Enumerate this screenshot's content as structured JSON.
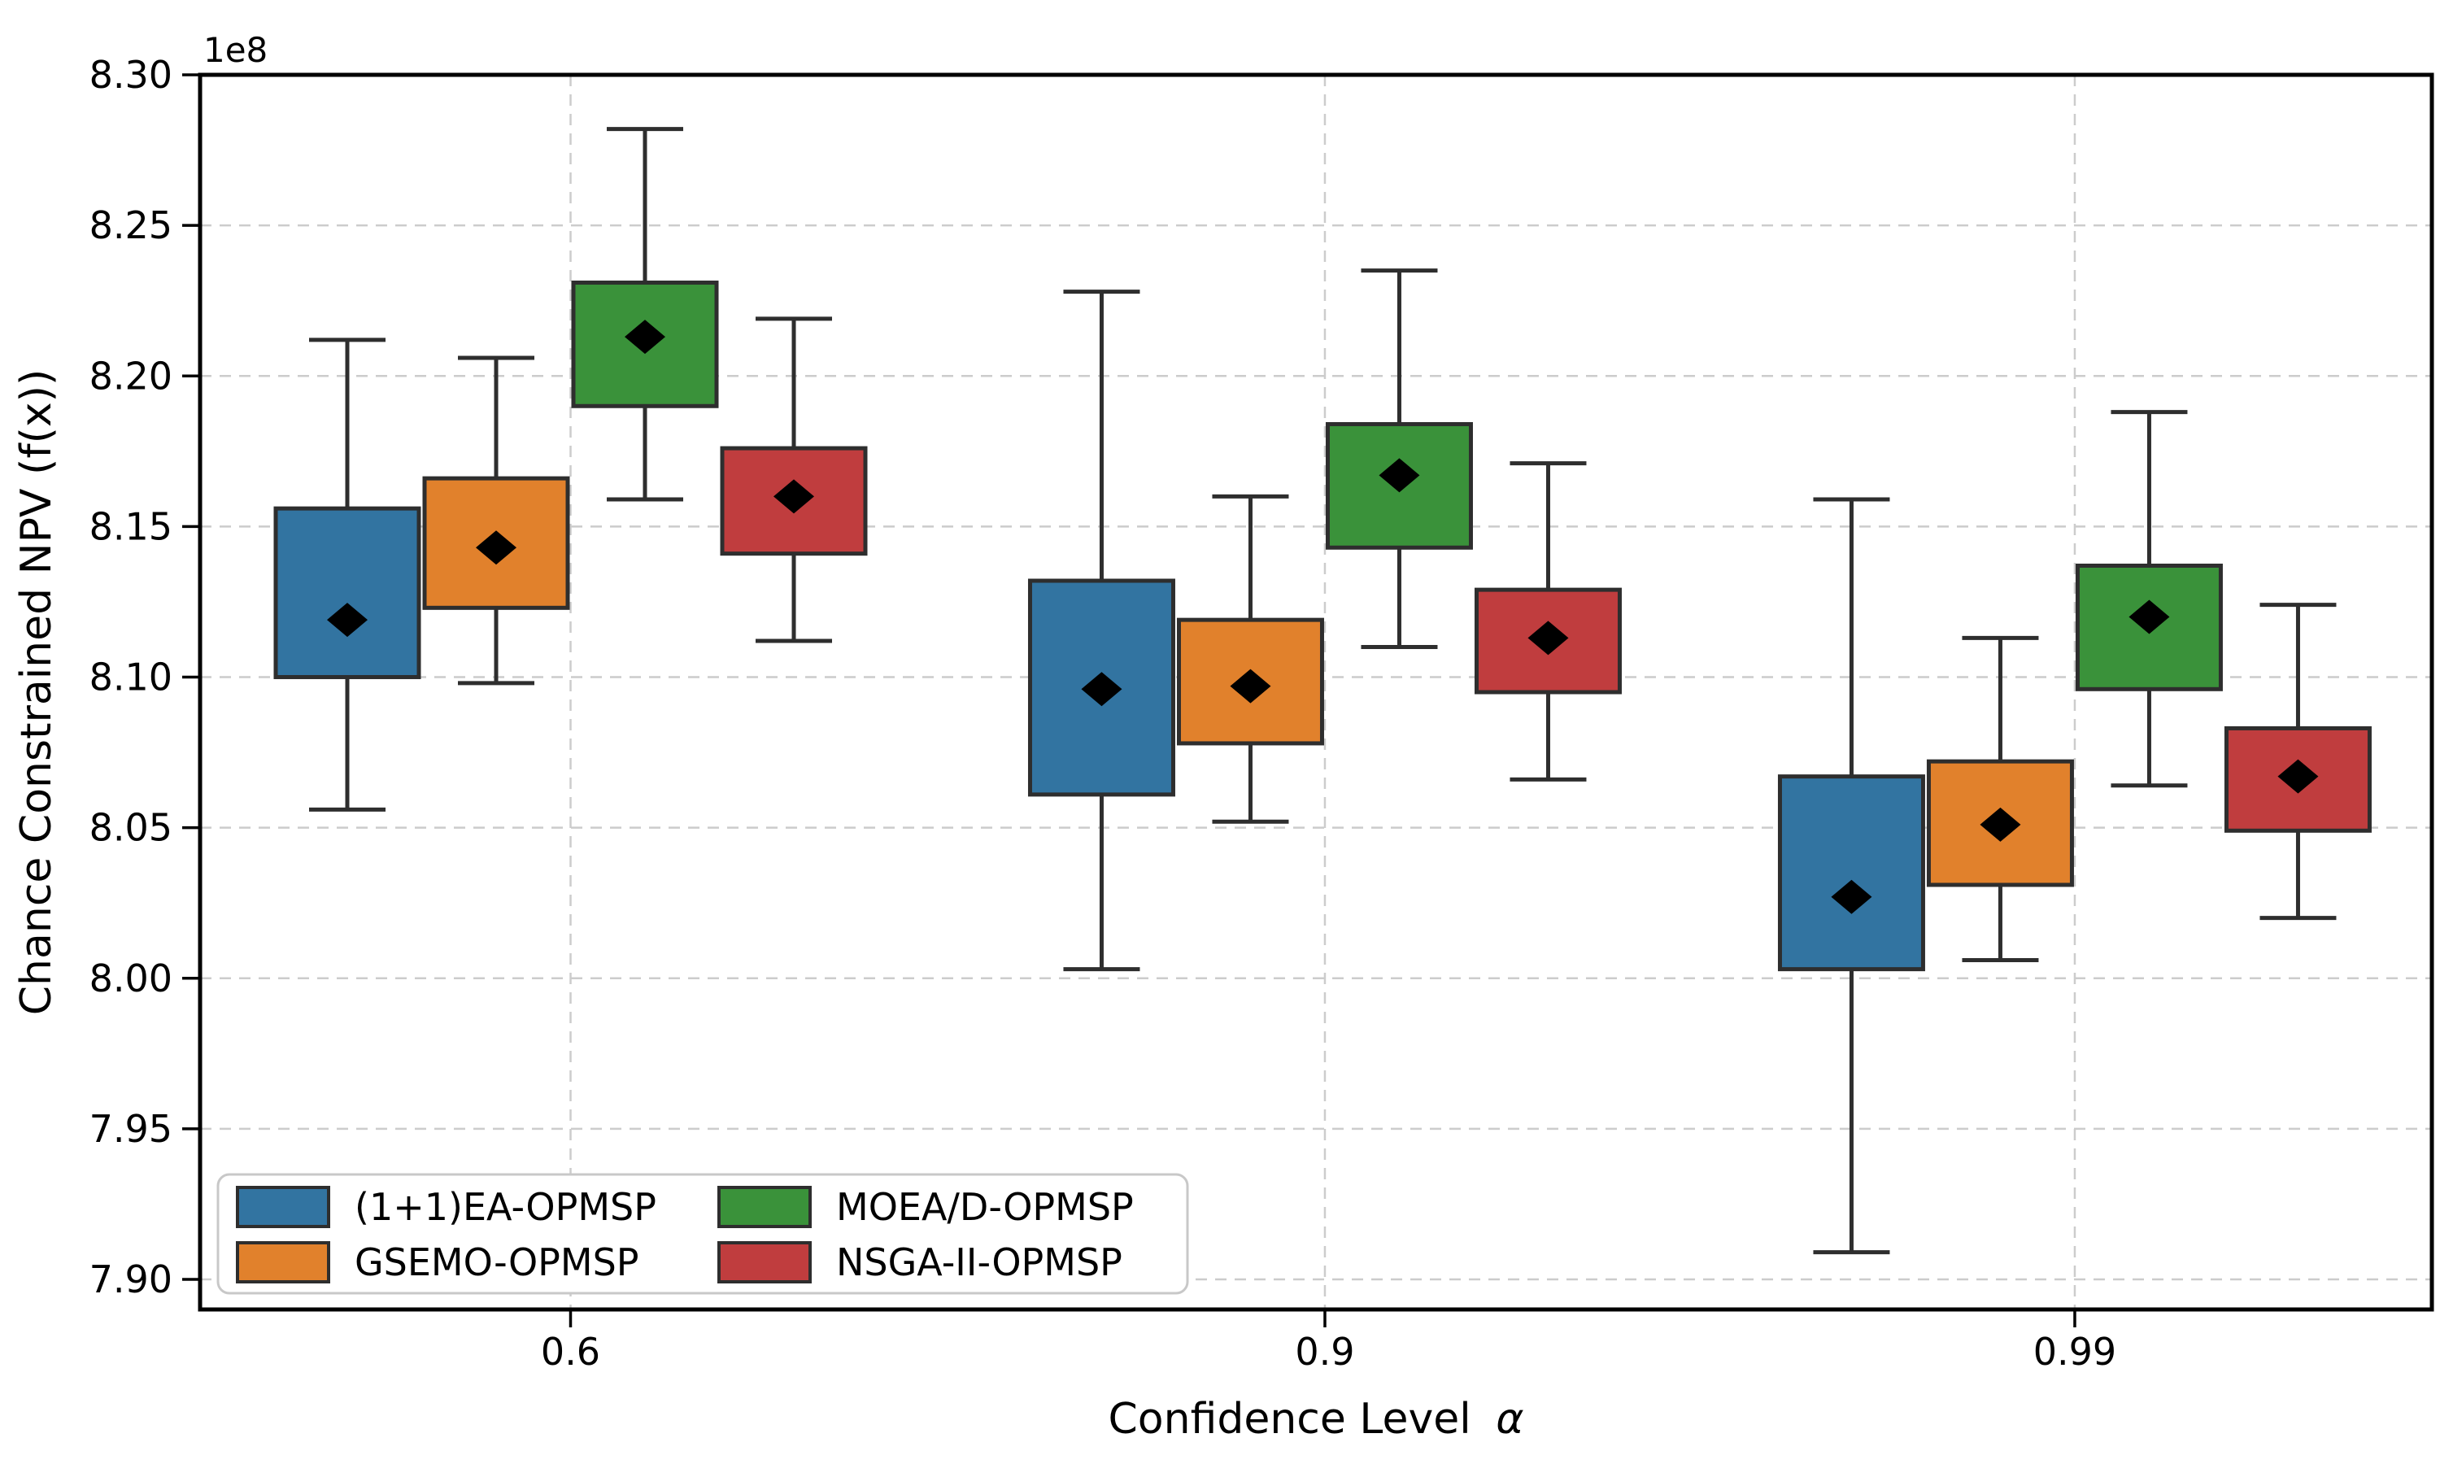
{
  "figure": {
    "background": "#ffffff"
  },
  "axes": {
    "x": {
      "label_text": "Confidence Level",
      "label_symbol": "α",
      "tick_labels": [
        "0.6",
        "0.9",
        "0.99"
      ]
    },
    "y": {
      "label": "Chance Constrained NPV (f(x))",
      "offset_text": "1e8",
      "tick_labels": [
        "8.30",
        "8.25",
        "8.20",
        "8.15",
        "8.10",
        "8.05",
        "8.00",
        "7.95",
        "7.90"
      ]
    }
  },
  "legend": {
    "position": "lower-left",
    "columns": 2,
    "items": [
      {
        "label": "(1+1)EA-OPMSP",
        "color": "#3274a1"
      },
      {
        "label": "GSEMO-OPMSP",
        "color": "#e1812c"
      },
      {
        "label": "MOEA/D-OPMSP",
        "color": "#3a923a"
      },
      {
        "label": "NSGA-II-OPMSP",
        "color": "#c03d3e"
      }
    ]
  },
  "style": {
    "box_edge": "#2e2e2e",
    "whisker": "#2e2e2e",
    "mean_marker": "#000000",
    "grid": "#cccccc",
    "spine": "#000000",
    "tick": "#000000",
    "legend_frame": "#c8c8c8",
    "legend_bg": "#ffffff"
  },
  "chart_data": {
    "type": "boxplot",
    "title": "",
    "xlabel": "Confidence Level α",
    "ylabel": "Chance Constrained NPV (f(x))",
    "y_unit_multiplier": "1e8",
    "ylim": [
      7.89,
      8.3
    ],
    "yticks": [
      8.3,
      8.25,
      8.2,
      8.15,
      8.1,
      8.05,
      8.0,
      7.95,
      7.9
    ],
    "categories": [
      "0.6",
      "0.9",
      "0.99"
    ],
    "grid": "dashed, horizontal at each ytick and vertical at each category",
    "legend_position": "lower left",
    "mean_marker": "black filled diamond",
    "median_line": "not shown",
    "series": [
      {
        "name": "(1+1)EA-OPMSP",
        "color": "#3274a1",
        "boxes": [
          {
            "category": "0.6",
            "whisker_low": 8.056,
            "q1": 8.1,
            "mean": 8.119,
            "q3": 8.156,
            "whisker_high": 8.212
          },
          {
            "category": "0.9",
            "whisker_low": 8.003,
            "q1": 8.061,
            "mean": 8.096,
            "q3": 8.132,
            "whisker_high": 8.228
          },
          {
            "category": "0.99",
            "whisker_low": 7.909,
            "q1": 8.003,
            "mean": 8.027,
            "q3": 8.067,
            "whisker_high": 8.159
          }
        ]
      },
      {
        "name": "GSEMO-OPMSP",
        "color": "#e1812c",
        "boxes": [
          {
            "category": "0.6",
            "whisker_low": 8.098,
            "q1": 8.123,
            "mean": 8.143,
            "q3": 8.166,
            "whisker_high": 8.206
          },
          {
            "category": "0.9",
            "whisker_low": 8.052,
            "q1": 8.078,
            "mean": 8.097,
            "q3": 8.119,
            "whisker_high": 8.16
          },
          {
            "category": "0.99",
            "whisker_low": 8.006,
            "q1": 8.031,
            "mean": 8.051,
            "q3": 8.072,
            "whisker_high": 8.113
          }
        ]
      },
      {
        "name": "MOEA/D-OPMSP",
        "color": "#3a923a",
        "boxes": [
          {
            "category": "0.6",
            "whisker_low": 8.159,
            "q1": 8.19,
            "mean": 8.213,
            "q3": 8.231,
            "whisker_high": 8.282
          },
          {
            "category": "0.9",
            "whisker_low": 8.11,
            "q1": 8.143,
            "mean": 8.167,
            "q3": 8.184,
            "whisker_high": 8.235
          },
          {
            "category": "0.99",
            "whisker_low": 8.064,
            "q1": 8.096,
            "mean": 8.12,
            "q3": 8.137,
            "whisker_high": 8.188
          }
        ]
      },
      {
        "name": "NSGA-II-OPMSP",
        "color": "#c03d3e",
        "boxes": [
          {
            "category": "0.6",
            "whisker_low": 8.112,
            "q1": 8.141,
            "mean": 8.16,
            "q3": 8.176,
            "whisker_high": 8.219
          },
          {
            "category": "0.9",
            "whisker_low": 8.066,
            "q1": 8.095,
            "mean": 8.113,
            "q3": 8.129,
            "whisker_high": 8.171
          },
          {
            "category": "0.99",
            "whisker_low": 8.02,
            "q1": 8.049,
            "mean": 8.067,
            "q3": 8.083,
            "whisker_high": 8.124
          }
        ]
      }
    ]
  }
}
